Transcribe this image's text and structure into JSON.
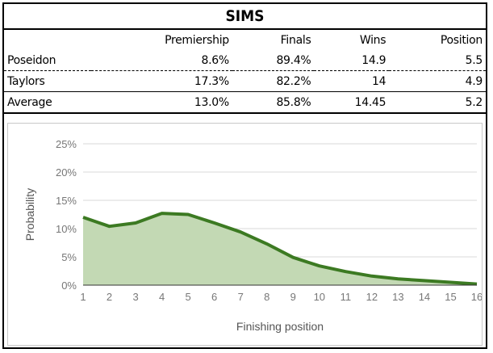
{
  "title": "SIMS",
  "table": {
    "columns": [
      "",
      "Premiership",
      "Finals",
      "Wins",
      "Position"
    ],
    "rows": [
      {
        "name": "Poseidon",
        "premiership": "8.6%",
        "finals": "89.4%",
        "wins": "14.9",
        "position": "5.5"
      },
      {
        "name": "Taylors",
        "premiership": "17.3%",
        "finals": "82.2%",
        "wins": "14",
        "position": "4.9"
      },
      {
        "name": "Average",
        "premiership": "13.0%",
        "finals": "85.8%",
        "wins": "14.45",
        "position": "5.2"
      }
    ]
  },
  "chart_data": {
    "type": "area",
    "xlabel": "Finishing position",
    "ylabel": "Probability",
    "x": [
      1,
      2,
      3,
      4,
      5,
      6,
      7,
      8,
      9,
      10,
      11,
      12,
      13,
      14,
      15,
      16
    ],
    "values": [
      12.0,
      10.4,
      11.0,
      12.7,
      12.5,
      11.0,
      9.4,
      7.3,
      4.9,
      3.4,
      2.4,
      1.6,
      1.1,
      0.8,
      0.5,
      0.2
    ],
    "ylim": [
      0,
      25
    ],
    "yticks": [
      "0%",
      "5%",
      "10%",
      "15%",
      "20%",
      "25%"
    ],
    "xticks": [
      "1",
      "2",
      "3",
      "4",
      "5",
      "6",
      "7",
      "8",
      "9",
      "10",
      "11",
      "12",
      "13",
      "14",
      "15",
      "16"
    ],
    "grid": true,
    "line_color": "#3c7a22",
    "fill_color": "#c3d9b4"
  }
}
